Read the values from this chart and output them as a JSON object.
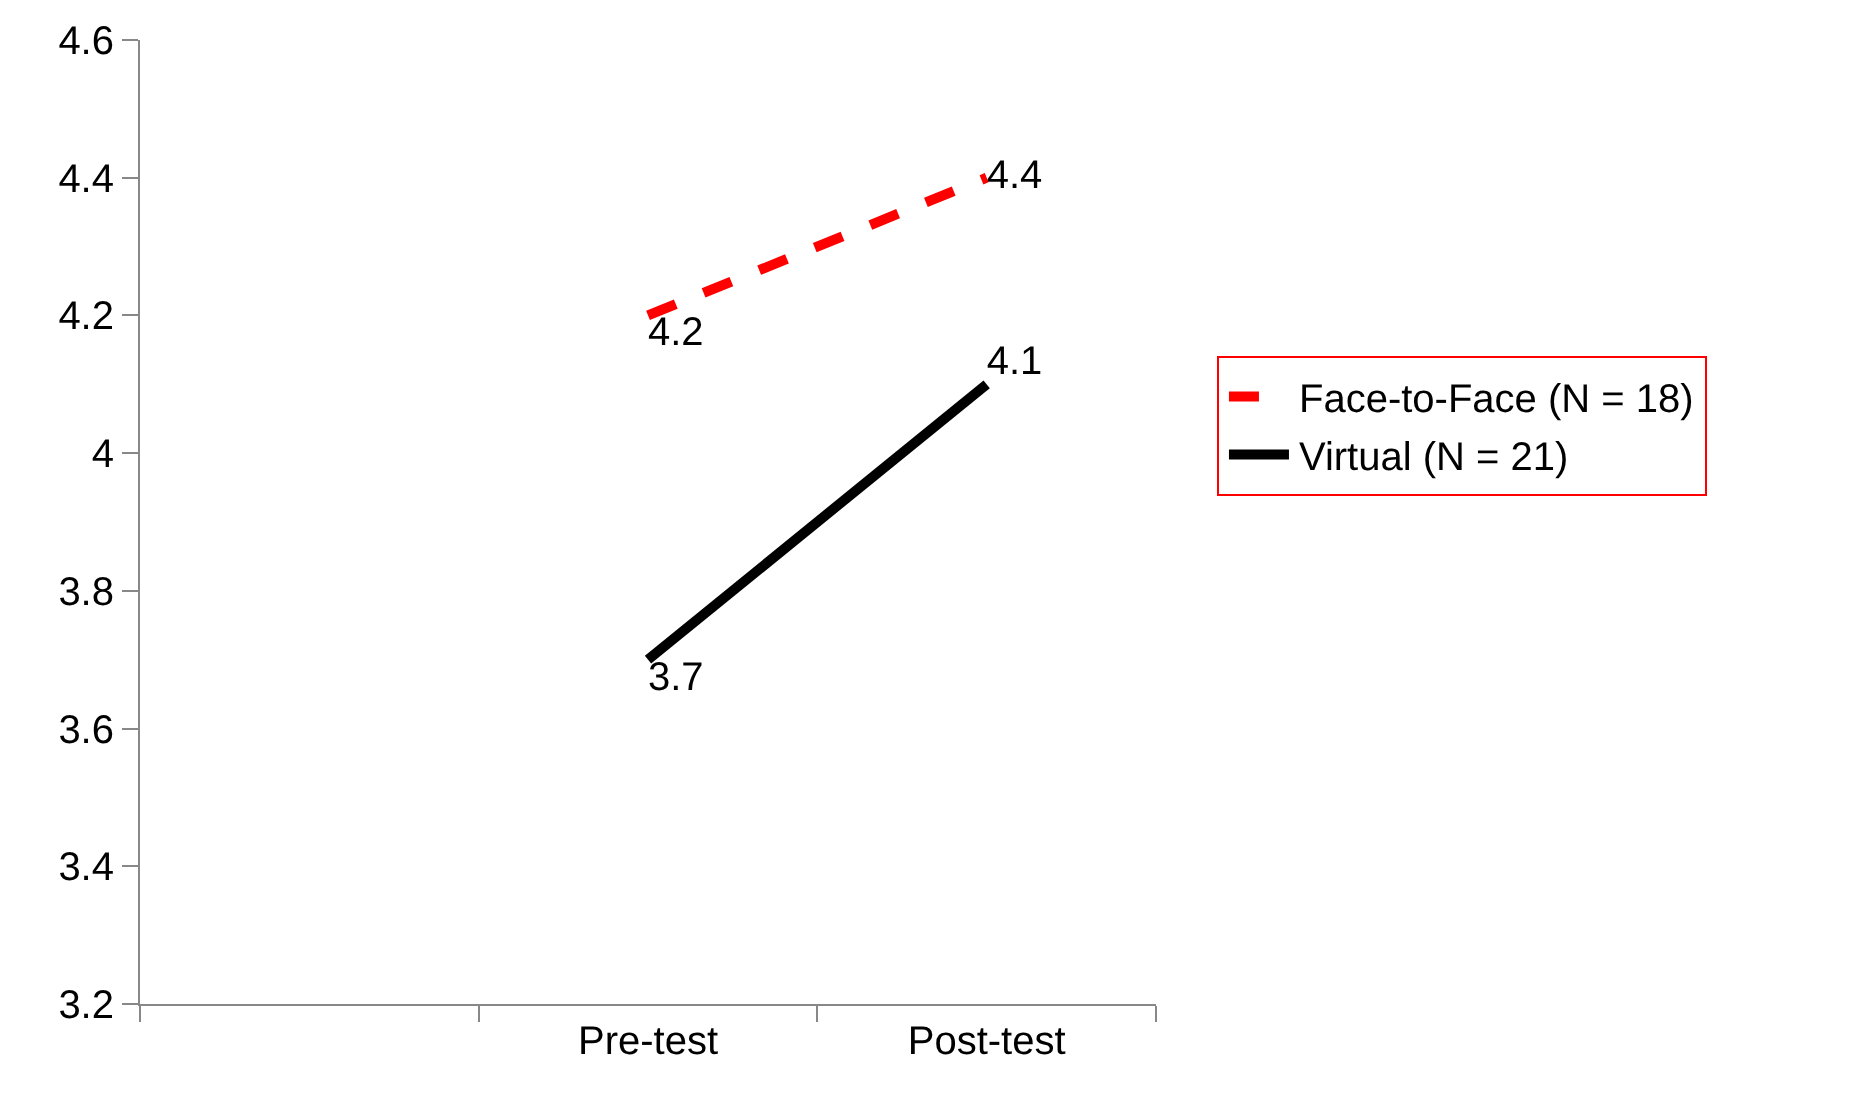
{
  "chart_data": {
    "type": "line",
    "categories": [
      null,
      "Pre-test",
      "Post-test"
    ],
    "series": [
      {
        "name": "Face-to-Face (N = 18)",
        "color": "#ff0000",
        "line_style": "dashed",
        "values": [
          null,
          4.2,
          4.4
        ]
      },
      {
        "name": "Virtual (N = 21)",
        "color": "#000000",
        "line_style": "solid",
        "values": [
          null,
          3.7,
          4.1
        ]
      }
    ],
    "ylim": [
      3.2,
      4.6
    ],
    "yticks": [
      3.2,
      3.4,
      3.6,
      3.8,
      4,
      4.2,
      4.4,
      4.6
    ],
    "grid": false,
    "legend": "right",
    "data_labels": true,
    "marker": "none"
  }
}
